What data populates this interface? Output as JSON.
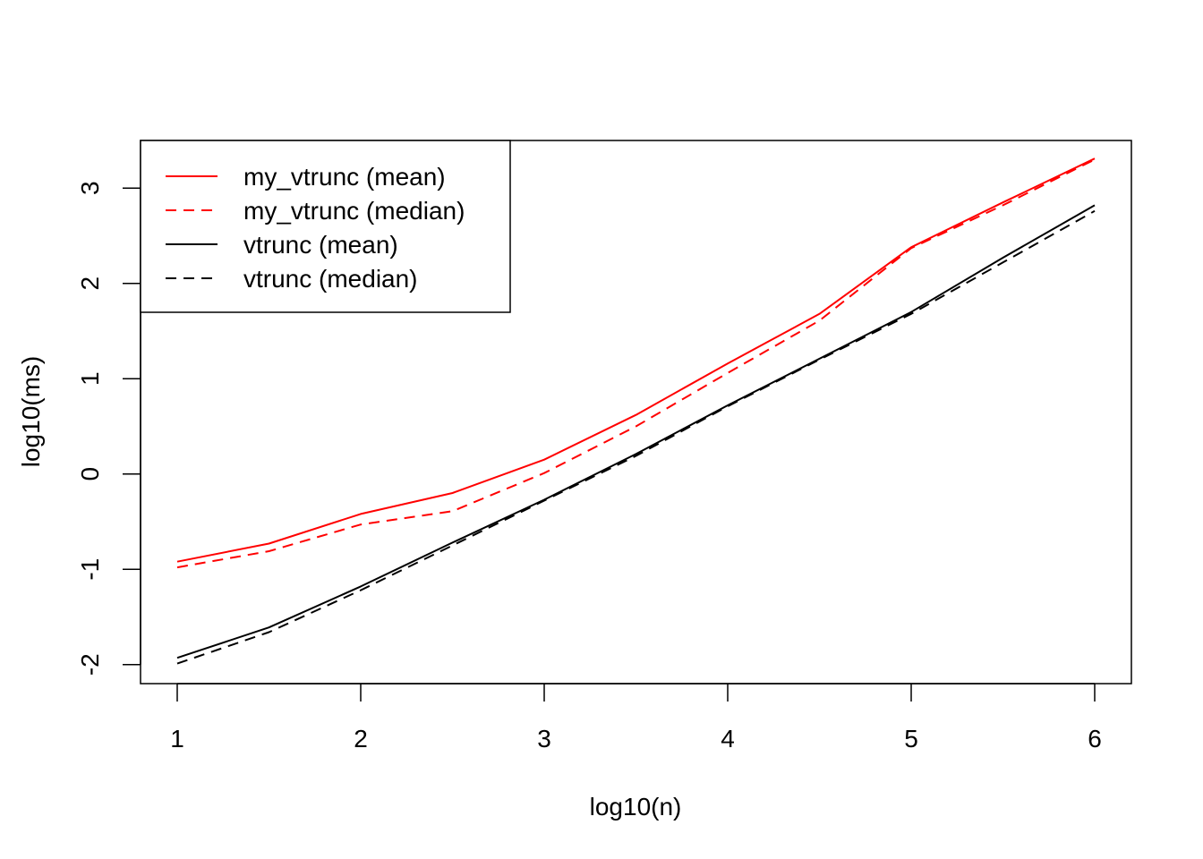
{
  "chart_data": {
    "type": "line",
    "title": "",
    "xlabel": "log10(n)",
    "ylabel": "log10(ms)",
    "xlim": [
      0.8,
      6.2
    ],
    "ylim": [
      -2.2,
      3.5
    ],
    "xticks": [
      1,
      2,
      3,
      4,
      5,
      6
    ],
    "yticks": [
      -2,
      -1,
      0,
      1,
      2,
      3
    ],
    "xtick_labels": [
      "1",
      "2",
      "3",
      "4",
      "5",
      "6"
    ],
    "ytick_labels": [
      "-2",
      "-1",
      "0",
      "1",
      "2",
      "3"
    ],
    "grid": false,
    "legend_position": "top-left",
    "x": [
      1,
      1.5,
      2,
      2.5,
      3,
      3.5,
      4,
      4.5,
      5,
      5.5,
      6
    ],
    "series": [
      {
        "name": "my_vtrunc (mean)",
        "color": "#ff0000",
        "dash": "solid",
        "values": [
          -0.92,
          -0.73,
          -0.42,
          -0.2,
          0.15,
          0.62,
          1.16,
          1.68,
          2.38,
          2.85,
          3.31
        ]
      },
      {
        "name": "my_vtrunc (median)",
        "color": "#ff0000",
        "dash": "dashed",
        "values": [
          -0.98,
          -0.81,
          -0.53,
          -0.39,
          0.01,
          0.5,
          1.06,
          1.61,
          2.37,
          2.82,
          3.3
        ]
      },
      {
        "name": "vtrunc (mean)",
        "color": "#000000",
        "dash": "solid",
        "values": [
          -1.93,
          -1.61,
          -1.18,
          -0.72,
          -0.27,
          0.21,
          0.72,
          1.21,
          1.7,
          2.27,
          2.82
        ]
      },
      {
        "name": "vtrunc (median)",
        "color": "#000000",
        "dash": "dashed",
        "values": [
          -1.99,
          -1.66,
          -1.22,
          -0.75,
          -0.28,
          0.19,
          0.71,
          1.2,
          1.68,
          2.22,
          2.76
        ]
      }
    ]
  }
}
